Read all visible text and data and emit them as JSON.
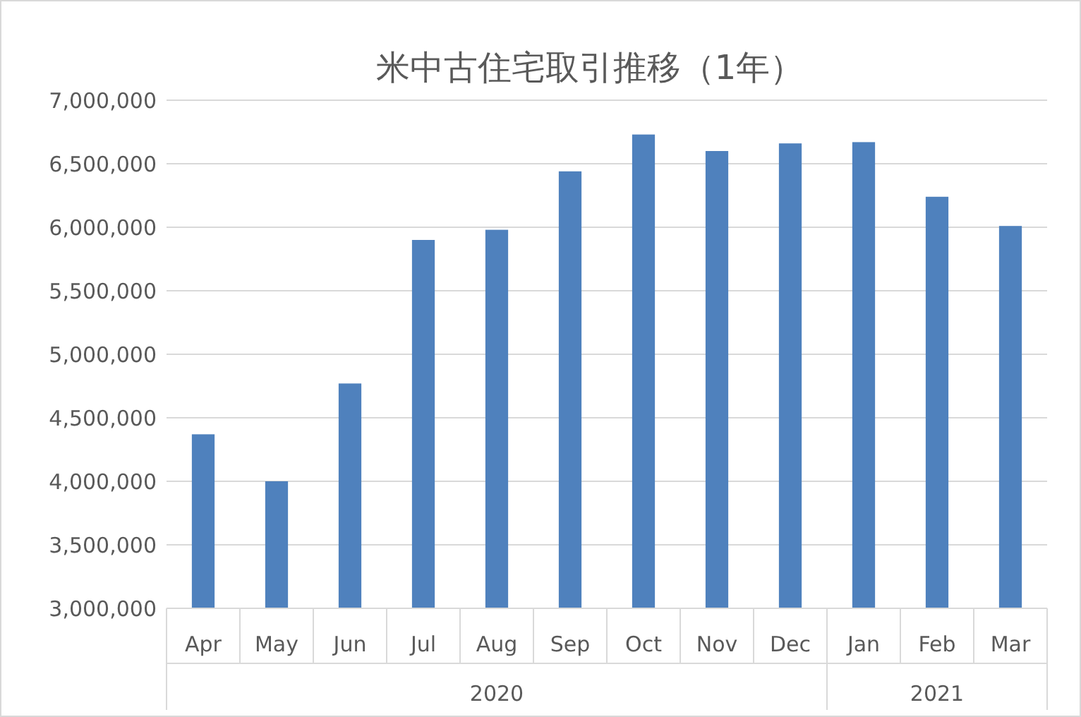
{
  "chart_data": {
    "type": "bar",
    "title": "米中古住宅取引推移（1年）",
    "categories": [
      "Apr",
      "May",
      "Jun",
      "Jul",
      "Aug",
      "Sep",
      "Oct",
      "Nov",
      "Dec",
      "Jan",
      "Feb",
      "Mar"
    ],
    "values": [
      4370000,
      4000000,
      4770000,
      5900000,
      5980000,
      6440000,
      6730000,
      6600000,
      6660000,
      6670000,
      6240000,
      6010000
    ],
    "color": "#4f81bd",
    "ylim": [
      3000000,
      7000000
    ],
    "yticks": [
      {
        "value": 3000000,
        "label": "3,000,000"
      },
      {
        "value": 3500000,
        "label": "3,500,000"
      },
      {
        "value": 4000000,
        "label": "4,000,000"
      },
      {
        "value": 4500000,
        "label": "4,500,000"
      },
      {
        "value": 5000000,
        "label": "5,000,000"
      },
      {
        "value": 5500000,
        "label": "5,500,000"
      },
      {
        "value": 6000000,
        "label": "6,000,000"
      },
      {
        "value": 6500000,
        "label": "6,500,000"
      },
      {
        "value": 7000000,
        "label": "7,000,000"
      }
    ],
    "grid": "y",
    "annotations": [
      "2020",
      "2021"
    ]
  }
}
